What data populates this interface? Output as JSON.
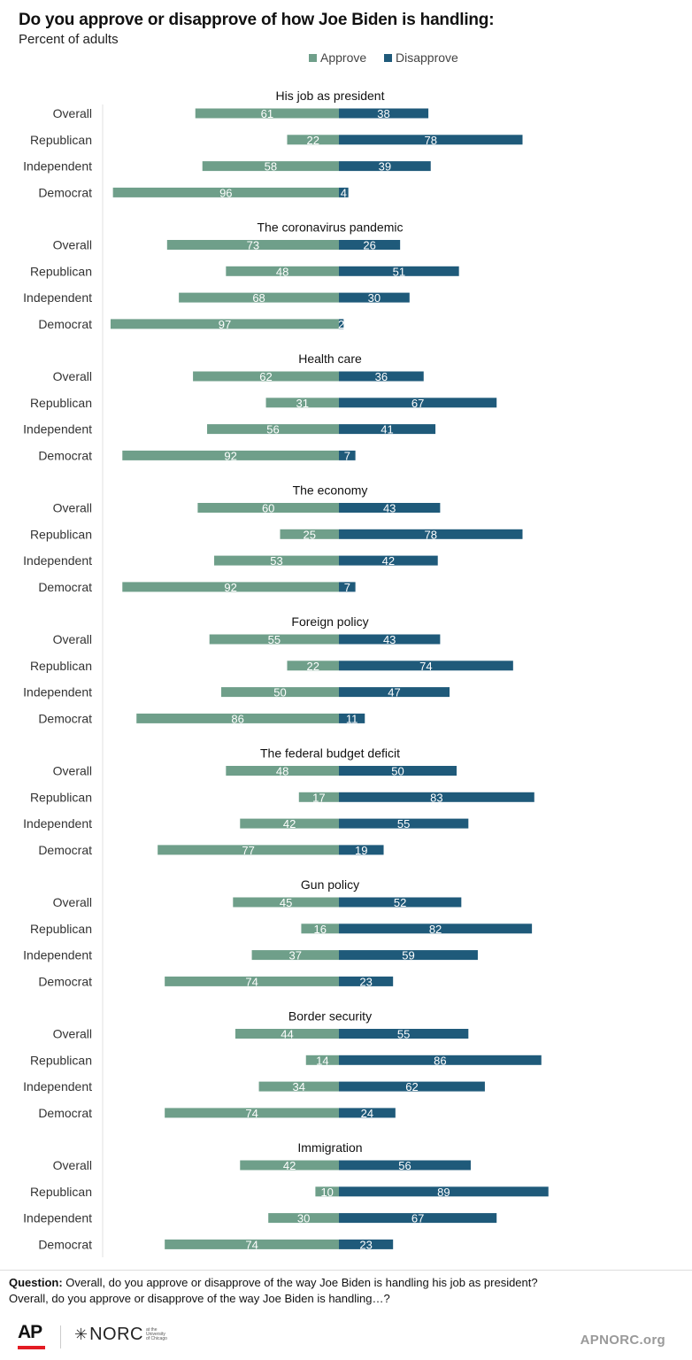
{
  "header": {
    "title": "Do you approve or disapprove of how Joe Biden is handling:",
    "subtitle": "Percent of adults"
  },
  "legend": {
    "approve_label": "Approve",
    "disapprove_label": "Disapprove",
    "approve_color": "#6f9f8a",
    "disapprove_color": "#1f5a7a"
  },
  "chart_data": {
    "type": "bar",
    "orientation": "horizontal-diverging",
    "title": "Do you approve or disapprove of how Joe Biden is handling:",
    "subtitle": "Percent of adults",
    "grid": false,
    "legend_position": "top",
    "categories": [
      "Overall",
      "Republican",
      "Independent",
      "Democrat"
    ],
    "groups": [
      {
        "label": "His job as president",
        "approve": [
          61,
          22,
          58,
          96
        ],
        "disapprove": [
          38,
          78,
          39,
          4
        ]
      },
      {
        "label": "The coronavirus pandemic",
        "approve": [
          73,
          48,
          68,
          97
        ],
        "disapprove": [
          26,
          51,
          30,
          2
        ]
      },
      {
        "label": "Health care",
        "approve": [
          62,
          31,
          56,
          92
        ],
        "disapprove": [
          36,
          67,
          41,
          7
        ]
      },
      {
        "label": "The economy",
        "approve": [
          60,
          25,
          53,
          92
        ],
        "disapprove": [
          43,
          78,
          42,
          7
        ]
      },
      {
        "label": "Foreign policy",
        "approve": [
          55,
          22,
          50,
          86
        ],
        "disapprove": [
          43,
          74,
          47,
          11
        ]
      },
      {
        "label": "The federal budget deficit",
        "approve": [
          48,
          17,
          42,
          77
        ],
        "disapprove": [
          50,
          83,
          55,
          19
        ]
      },
      {
        "label": "Gun policy",
        "approve": [
          45,
          16,
          37,
          74
        ],
        "disapprove": [
          52,
          82,
          59,
          23
        ]
      },
      {
        "label": "Border security",
        "approve": [
          44,
          14,
          34,
          74
        ],
        "disapprove": [
          55,
          86,
          62,
          24
        ]
      },
      {
        "label": "Immigration",
        "approve": [
          42,
          10,
          30,
          74
        ],
        "disapprove": [
          56,
          89,
          67,
          23
        ]
      }
    ]
  },
  "footer": {
    "question_label": "Question:",
    "question_text": " Overall, do you approve or disapprove of the way Joe Biden is handling his job as president?",
    "question_text_2": "Overall, do you approve or disapprove of the way Joe Biden is handling…?",
    "ap_logo_text": "AP",
    "norc_logo_text": "NORC",
    "norc_logo_small": "at the University of Chicago",
    "site": "APNORC.org"
  }
}
